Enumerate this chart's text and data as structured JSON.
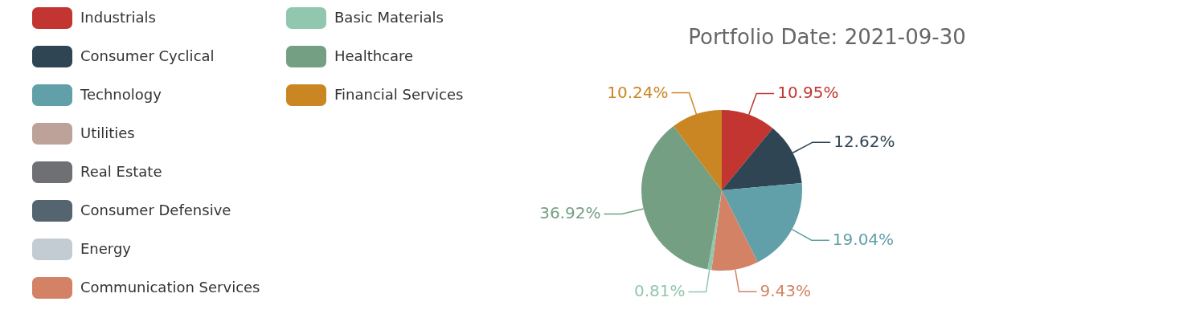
{
  "chart_data": {
    "type": "pie",
    "title": "Portfolio Date: 2021-09-30",
    "categories": [
      "Industrials",
      "Consumer Cyclical",
      "Technology",
      "Utilities",
      "Real Estate",
      "Consumer Defensive",
      "Energy",
      "Communication Services",
      "Basic Materials",
      "Healthcare",
      "Financial Services"
    ],
    "values": [
      10.95,
      12.62,
      19.04,
      0,
      0,
      0,
      0,
      9.43,
      0.81,
      36.92,
      10.24
    ],
    "value_labels": [
      "10.95%",
      "12.62%",
      "19.04%",
      null,
      null,
      null,
      null,
      "9.43%",
      "0.81%",
      "36.92%",
      "10.24%"
    ],
    "colors": [
      "#c23531",
      "#2f4554",
      "#61a0a8",
      "#bda29a",
      "#6e7074",
      "#546570",
      "#c4ccd3",
      "#d48265",
      "#91c7ae",
      "#749f83",
      "#ca8622"
    ],
    "legend": "left"
  }
}
